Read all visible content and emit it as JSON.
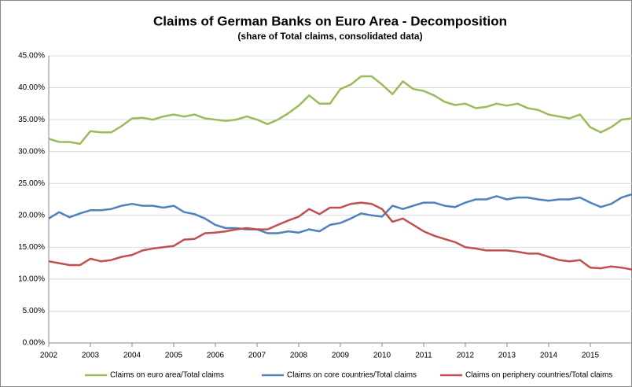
{
  "chart_data": {
    "type": "line",
    "title": "Claims of German Banks on Euro Area - Decomposition",
    "subtitle": "(share of Total claims, consolidated data)",
    "x": [
      2002,
      2002.25,
      2002.5,
      2002.75,
      2003,
      2003.25,
      2003.5,
      2003.75,
      2004,
      2004.25,
      2004.5,
      2004.75,
      2005,
      2005.25,
      2005.5,
      2005.75,
      2006,
      2006.25,
      2006.5,
      2006.75,
      2007,
      2007.25,
      2007.5,
      2007.75,
      2008,
      2008.25,
      2008.5,
      2008.75,
      2009,
      2009.25,
      2009.5,
      2009.75,
      2010,
      2010.25,
      2010.5,
      2010.75,
      2011,
      2011.25,
      2011.5,
      2011.75,
      2012,
      2012.25,
      2012.5,
      2012.75,
      2013,
      2013.25,
      2013.5,
      2013.75,
      2014,
      2014.25,
      2014.5,
      2014.75,
      2015,
      2015.25,
      2015.5,
      2015.75,
      2016
    ],
    "series": [
      {
        "name": "Claims on euro area/Total claims",
        "color": "#9bbb59",
        "values": [
          32,
          31.5,
          31.5,
          31.2,
          33.2,
          33,
          33,
          34,
          35.2,
          35.3,
          35,
          35.5,
          35.8,
          35.5,
          35.8,
          35.2,
          35,
          34.8,
          35,
          35.5,
          35,
          34.3,
          35,
          36,
          37.2,
          38.8,
          37.5,
          37.5,
          39.8,
          40.5,
          41.8,
          41.8,
          40.5,
          39,
          41,
          39.8,
          39.5,
          38.8,
          37.8,
          37.3,
          37.5,
          36.8,
          37,
          37.5,
          37.2,
          37.5,
          36.8,
          36.5,
          35.8,
          35.5,
          35.2,
          35.8,
          33.8,
          33,
          33.8,
          35,
          35.2
        ]
      },
      {
        "name": "Claims on core countries/Total claims",
        "color": "#4f81bd",
        "values": [
          19.5,
          20.5,
          19.7,
          20.3,
          20.8,
          20.8,
          21,
          21.5,
          21.8,
          21.5,
          21.5,
          21.2,
          21.5,
          20.5,
          20.2,
          19.5,
          18.5,
          18,
          18,
          17.8,
          17.8,
          17.2,
          17.2,
          17.5,
          17.3,
          17.8,
          17.5,
          18.5,
          18.8,
          19.5,
          20.3,
          20,
          19.8,
          21.5,
          21,
          21.5,
          22,
          22,
          21.5,
          21.3,
          22,
          22.5,
          22.5,
          23,
          22.5,
          22.8,
          22.8,
          22.5,
          22.3,
          22.5,
          22.5,
          22.8,
          22,
          21.3,
          21.8,
          22.8,
          23.3
        ]
      },
      {
        "name": "Claims on periphery countries/Total claims",
        "color": "#c0504d",
        "values": [
          12.8,
          12.5,
          12.2,
          12.2,
          13.2,
          12.8,
          13,
          13.5,
          13.8,
          14.5,
          14.8,
          15,
          15.2,
          16.2,
          16.3,
          17.2,
          17.3,
          17.5,
          17.8,
          18,
          17.8,
          17.8,
          18.5,
          19.2,
          19.8,
          21,
          20.2,
          21.2,
          21.2,
          21.8,
          22,
          21.8,
          21,
          19,
          19.5,
          18.5,
          17.5,
          16.8,
          16.3,
          15.8,
          15,
          14.8,
          14.5,
          14.5,
          14.5,
          14.3,
          14,
          14,
          13.5,
          13,
          12.8,
          13,
          11.8,
          11.7,
          12,
          11.8,
          11.5
        ]
      }
    ],
    "xlim": [
      2002,
      2016
    ],
    "xticks": [
      2002,
      2003,
      2004,
      2005,
      2006,
      2007,
      2008,
      2009,
      2010,
      2011,
      2012,
      2013,
      2014,
      2015
    ],
    "ylim": [
      0,
      45
    ],
    "yticks": [
      {
        "value": 0,
        "label": "0.00%"
      },
      {
        "value": 5,
        "label": "5.00%"
      },
      {
        "value": 10,
        "label": "10.00%"
      },
      {
        "value": 15,
        "label": "15.00%"
      },
      {
        "value": 20,
        "label": "20.00%"
      },
      {
        "value": 25,
        "label": "25.00%"
      },
      {
        "value": 30,
        "label": "30.00%"
      },
      {
        "value": 35,
        "label": "35.00%"
      },
      {
        "value": 40,
        "label": "40.00%"
      },
      {
        "value": 45,
        "label": "45.00%"
      }
    ],
    "grid": true,
    "legend": "bottom"
  }
}
